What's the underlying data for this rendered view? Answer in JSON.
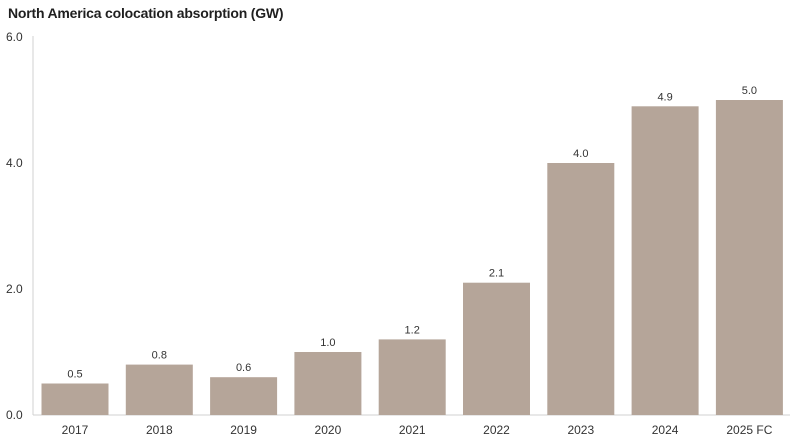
{
  "chart_data": {
    "type": "bar",
    "title": "North America colocation absorption (GW)",
    "xlabel": "",
    "ylabel": "",
    "ylim": [
      0,
      6
    ],
    "yticks": [
      "0.0",
      "2.0",
      "4.0",
      "6.0"
    ],
    "ytick_values": [
      0,
      2,
      4,
      6
    ],
    "categories": [
      "2017",
      "2018",
      "2019",
      "2020",
      "2021",
      "2022",
      "2023",
      "2024",
      "2025 FC"
    ],
    "values": [
      0.5,
      0.8,
      0.6,
      1.0,
      1.2,
      2.1,
      4.0,
      4.9,
      5.0
    ],
    "data_labels": [
      "0.5",
      "0.8",
      "0.6",
      "1.0",
      "1.2",
      "2.1",
      "4.0",
      "4.9",
      "5.0"
    ],
    "bar_color": "#b5a599",
    "grid": false
  }
}
